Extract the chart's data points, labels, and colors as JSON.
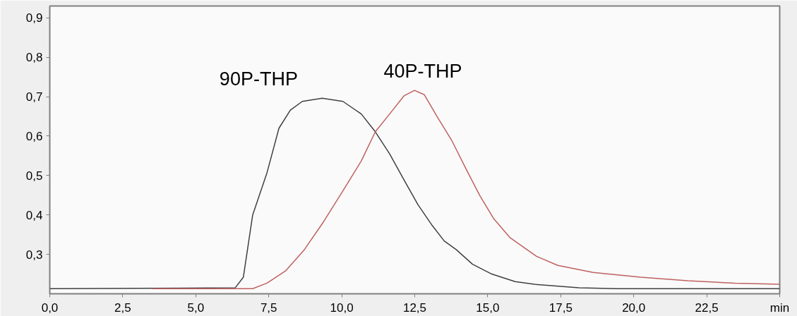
{
  "chart_data": {
    "type": "line",
    "grid": false,
    "legend": false,
    "marker": "none",
    "line_style": "solid",
    "xlim": [
      0,
      25
    ],
    "ylim": [
      0.2,
      0.93
    ],
    "xticks": [
      {
        "value": 0,
        "label": "0,0"
      },
      {
        "value": 2.5,
        "label": "2,5"
      },
      {
        "value": 5,
        "label": "5,0"
      },
      {
        "value": 7.5,
        "label": "7,5"
      },
      {
        "value": 10,
        "label": "10,0"
      },
      {
        "value": 12.5,
        "label": "12,5"
      },
      {
        "value": 15,
        "label": "15,0"
      },
      {
        "value": 17.5,
        "label": "17,5"
      },
      {
        "value": 20,
        "label": "20,0"
      },
      {
        "value": 22.5,
        "label": "22,5"
      },
      {
        "value": 25,
        "label": "min"
      }
    ],
    "yticks": [
      {
        "value": 0.3,
        "label": "0,3"
      },
      {
        "value": 0.4,
        "label": "0,4"
      },
      {
        "value": 0.5,
        "label": "0,5"
      },
      {
        "value": 0.6,
        "label": "0,6"
      },
      {
        "value": 0.7,
        "label": "0,7"
      },
      {
        "value": 0.8,
        "label": "0,8"
      },
      {
        "value": 0.9,
        "label": "0,9"
      }
    ],
    "series": [
      {
        "name": "90P-THP",
        "color": "#404040",
        "x": [
          0,
          6.35,
          6.63,
          6.95,
          7.44,
          7.85,
          8.24,
          8.65,
          9.33,
          10.04,
          10.67,
          11.13,
          11.64,
          12.13,
          12.61,
          13.1,
          13.51,
          13.92,
          14.48,
          15.14,
          15.94,
          16.6,
          18.13,
          19.4,
          25
        ],
        "values": [
          0.213,
          0.215,
          0.242,
          0.4,
          0.507,
          0.62,
          0.666,
          0.688,
          0.696,
          0.688,
          0.656,
          0.613,
          0.555,
          0.489,
          0.426,
          0.373,
          0.334,
          0.312,
          0.275,
          0.25,
          0.231,
          0.224,
          0.215,
          0.213,
          0.213
        ]
      },
      {
        "name": "40P-THP",
        "color": "#c06060",
        "x": [
          3.5,
          6.95,
          7.44,
          8.09,
          8.72,
          9.38,
          10.04,
          10.67,
          11.15,
          11.64,
          12.13,
          12.49,
          12.83,
          13.27,
          13.76,
          14.24,
          14.73,
          15.21,
          15.77,
          16.67,
          17.4,
          18.61,
          20.24,
          21.85,
          23.47,
          25
        ],
        "values": [
          0.213,
          0.213,
          0.227,
          0.259,
          0.312,
          0.383,
          0.461,
          0.537,
          0.611,
          0.656,
          0.702,
          0.716,
          0.705,
          0.649,
          0.59,
          0.519,
          0.449,
          0.39,
          0.342,
          0.295,
          0.272,
          0.254,
          0.242,
          0.233,
          0.227,
          0.224
        ]
      }
    ]
  }
}
